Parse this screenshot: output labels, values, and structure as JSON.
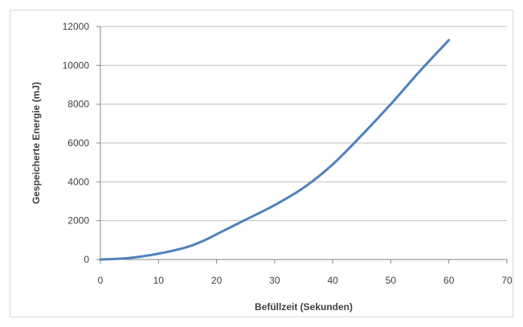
{
  "chart_data": {
    "type": "line",
    "title": "",
    "xlabel": "Befüllzeit (Sekunden)",
    "ylabel": "Gespeicherte Energie (mJ)",
    "xlim": [
      0,
      70
    ],
    "ylim": [
      0,
      12000
    ],
    "xticks": [
      0,
      10,
      20,
      30,
      40,
      50,
      60,
      70
    ],
    "yticks": [
      0,
      2000,
      4000,
      6000,
      8000,
      10000,
      12000
    ],
    "grid": "horizontal",
    "legend": "none",
    "series": [
      {
        "color": "#4f81bd",
        "x": [
          0,
          5,
          10,
          15,
          18,
          20,
          25,
          30,
          35,
          40,
          45,
          50,
          55,
          60
        ],
        "y": [
          0,
          80,
          300,
          650,
          1000,
          1300,
          2050,
          2800,
          3700,
          4900,
          6400,
          8000,
          9700,
          11300
        ]
      }
    ]
  }
}
